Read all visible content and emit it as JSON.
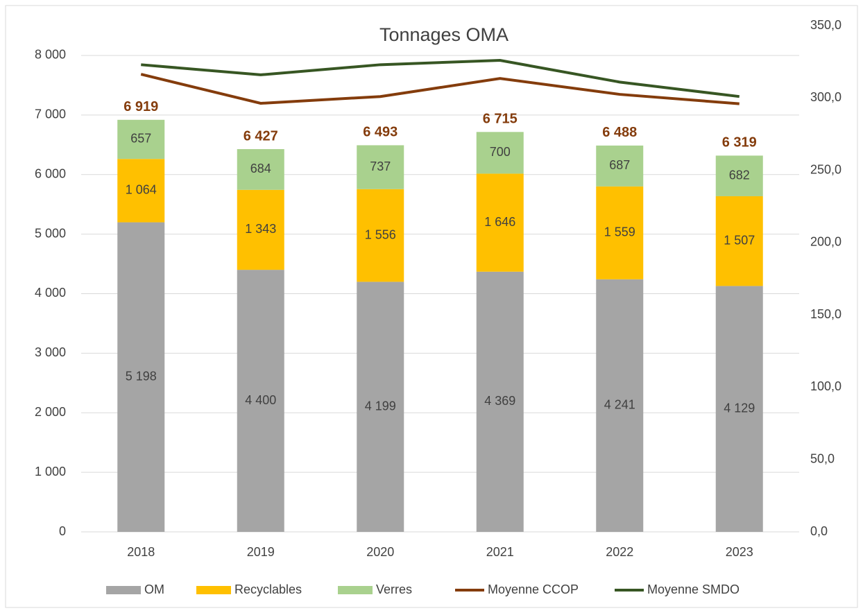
{
  "chart_data": {
    "type": "stacked-bar-line",
    "title": "Tonnages OMA",
    "categories": [
      "2018",
      "2019",
      "2020",
      "2021",
      "2022",
      "2023"
    ],
    "series": [
      {
        "name": "OM",
        "color": "#a5a5a5",
        "values": [
          5198,
          4400,
          4199,
          4369,
          4241,
          4129
        ],
        "value_labels": [
          "5 198",
          "4 400",
          "4 199",
          "4 369",
          "4 241",
          "4 129"
        ]
      },
      {
        "name": "Recyclables",
        "color": "#ffc000",
        "values": [
          1064,
          1343,
          1556,
          1646,
          1559,
          1507
        ],
        "value_labels": [
          "1 064",
          "1 343",
          "1 556",
          "1 646",
          "1 559",
          "1 507"
        ]
      },
      {
        "name": "Verres",
        "color": "#a9d18e",
        "values": [
          657,
          684,
          737,
          700,
          687,
          682
        ]
      },
      {
        "name": "Moyenne CCOP",
        "color": "#843c0c",
        "axis": "y2",
        "type": "line",
        "values": [
          316.4,
          296.3,
          301,
          313.5,
          302.5,
          296
        ]
      },
      {
        "name": "Moyenne SMDO",
        "color": "#375623",
        "axis": "y2",
        "type": "line",
        "values": [
          323,
          316,
          323,
          326,
          311,
          301
        ]
      }
    ],
    "totals": [
      6919,
      6427,
      6493,
      6715,
      6488,
      6319
    ],
    "total_labels": [
      "6 919",
      "6 427",
      "6 493",
      "6 715",
      "6 488",
      "6 319"
    ],
    "total_color": "#843c0c",
    "ylim": [
      0,
      8500
    ],
    "yticks": [
      0,
      {
        "value": 1000,
        "label": "1 000"
      },
      {
        "value": 2000,
        "label": "2 000"
      },
      {
        "value": 3000,
        "label": "3 000"
      },
      {
        "value": 4000,
        "label": "4 000"
      },
      {
        "value": 5000,
        "label": "5 000"
      },
      {
        "value": 6000,
        "label": "6 000"
      },
      {
        "value": 7000,
        "label": "7 000"
      },
      {
        "value": 8000,
        "label": "8 000"
      }
    ],
    "y2lim": [
      0,
      350
    ],
    "y2ticks": [
      {
        "value": 0,
        "label": "0,0"
      },
      {
        "value": 50,
        "label": "50,0"
      },
      {
        "value": 100,
        "label": "100,0"
      },
      {
        "value": 150,
        "label": "150,0"
      },
      {
        "value": 200,
        "label": "200,0"
      },
      {
        "value": 250,
        "label": "250,0"
      },
      {
        "value": 300,
        "label": "300,0"
      },
      {
        "value": 350,
        "label": "350,0"
      }
    ],
    "grid": true,
    "legend": "bottom"
  }
}
